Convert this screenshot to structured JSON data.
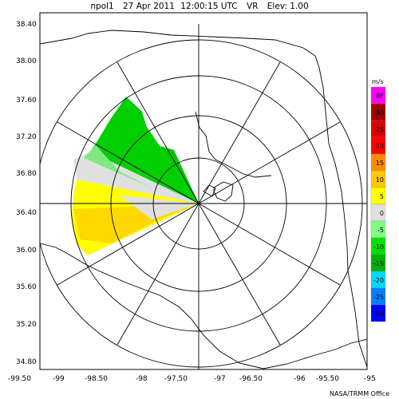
{
  "header": {
    "radar": "npol1",
    "date": "27 Apr 2011",
    "time": "12:00:15 UTC",
    "product": "VR",
    "elevation": "Elev: 1.00"
  },
  "axes": {
    "lat_labels": [
      "38.40",
      "38.00",
      "37.60",
      "37.20",
      "36.80",
      "36.40",
      "36.00",
      "35.60",
      "35.20",
      "34.80"
    ],
    "lon_labels": [
      "-99.50",
      "-99",
      "-98.50",
      "-98",
      "-97.50",
      "-97",
      "-96.50",
      "-96",
      "-95.50",
      "-95"
    ]
  },
  "colorbar": {
    "unit": "m/s",
    "entries": [
      {
        "label": "RF",
        "color": "#ff00ff"
      },
      {
        "label": "30",
        "color": "#a00000"
      },
      {
        "label": "25",
        "color": "#e00000"
      },
      {
        "label": "20",
        "color": "#ff0000"
      },
      {
        "label": "15",
        "color": "#ff8c00"
      },
      {
        "label": "10",
        "color": "#ffc800"
      },
      {
        "label": "5",
        "color": "#ffff00"
      },
      {
        "label": "0",
        "color": "#e0e0e0"
      },
      {
        "label": "-5",
        "color": "#80ff80"
      },
      {
        "label": "-10",
        "color": "#00e000"
      },
      {
        "label": "-15",
        "color": "#00b000"
      },
      {
        "label": "-20",
        "color": "#00d8ff"
      },
      {
        "label": "-25",
        "color": "#0080ff"
      },
      {
        "label": "-30",
        "color": "#0000ff"
      }
    ]
  },
  "credit": "NASA/TRMM Office",
  "colors": {
    "frame": "#000000",
    "rings": "#000000",
    "border": "#000000",
    "inbound_green": "#00c800",
    "light_green": "#80e880",
    "zero_gray": "#e0e0e0",
    "outbound_yellow": "#ffff00",
    "outbound_amber": "#ffd800"
  }
}
